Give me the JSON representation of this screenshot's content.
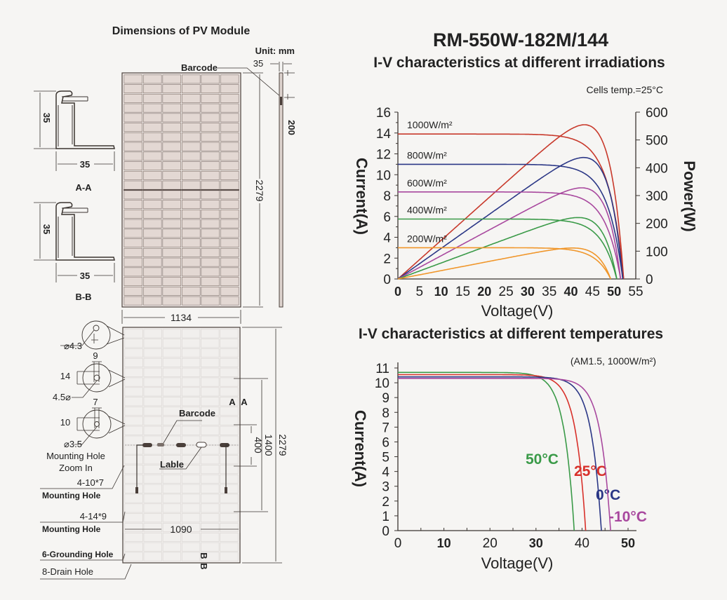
{
  "drawing": {
    "title": "Dimensions of PV Module",
    "unit": "Unit: mm",
    "barcode_top": "Barcode",
    "frame_depth": "35",
    "cable_length": "200",
    "length": "2279",
    "width": "1134",
    "section_aa": {
      "height": "35",
      "width": "35",
      "label": "A-A"
    },
    "section_bb": {
      "height": "35",
      "width": "35",
      "label": "B-B"
    },
    "hole_grounding_dia": "⌀4.3",
    "hole_large": {
      "w": "9",
      "h": "14",
      "dia": "4.5⌀"
    },
    "hole_small": {
      "w": "7",
      "h": "10",
      "dia": "⌀3.5"
    },
    "zoom_caption": [
      "Mounting Hole",
      "Zoom In"
    ],
    "mount_small_count": "4-10*7",
    "mount_small_label": "Mounting Hole",
    "mount_large_count": "4-14*9",
    "mount_large_label": "Mounting Hole",
    "grounding": "6-Grounding Hole",
    "drain": "8-Drain Hole",
    "barcode_back": "Barcode",
    "label_back": "Lable",
    "back_length": "2279",
    "mount_span": "1400",
    "mount_inner": "400",
    "mount_width": "1090",
    "section_mark_a": "A",
    "section_mark_b": "B"
  },
  "model": "RM-550W-182M/144",
  "chart_data": [
    {
      "type": "line",
      "title": "I-V characteristics at different irradiations",
      "note": "Cells temp.=25°C",
      "xlabel": "Voltage(V)",
      "ylabel": "Current(A)",
      "y2label": "Power(W)",
      "xlim": [
        0,
        55
      ],
      "ylim": [
        0,
        16
      ],
      "y2lim": [
        0,
        600
      ],
      "xticks": [
        "0",
        "5",
        "10",
        "15",
        "20",
        "25",
        "30",
        "35",
        "40",
        "45",
        "50",
        "55"
      ],
      "yticks": [
        "0",
        "2",
        "4",
        "6",
        "8",
        "10",
        "12",
        "14",
        "16"
      ],
      "y2ticks": [
        "0",
        "100",
        "200",
        "300",
        "400",
        "500",
        "600"
      ],
      "grid": false,
      "series": [
        {
          "name": "1000W/m²",
          "isc": 13.9,
          "voc": 52.2,
          "color": "#c8392b"
        },
        {
          "name": "800W/m²",
          "isc": 11.0,
          "voc": 52.0,
          "color": "#2b3786"
        },
        {
          "name": "600W/m²",
          "isc": 8.35,
          "voc": 51.5,
          "color": "#a8489e"
        },
        {
          "name": "400W/m²",
          "isc": 5.75,
          "voc": 50.6,
          "color": "#3a9a48"
        },
        {
          "name": "200W/m²",
          "isc": 3.0,
          "voc": 49.2,
          "color": "#f0962a"
        }
      ]
    },
    {
      "type": "line",
      "title": "I-V characteristics at different temperatures",
      "note": "(AM1.5, 1000W/m²)",
      "xlabel": "Voltage(V)",
      "ylabel": "Current(A)",
      "xlim": [
        0,
        52
      ],
      "ylim": [
        0,
        11
      ],
      "xticks": [
        "0",
        "10",
        "20",
        "30",
        "40",
        "50"
      ],
      "yticks": [
        "0",
        "1",
        "2",
        "3",
        "4",
        "5",
        "6",
        "7",
        "8",
        "9",
        "10",
        "11"
      ],
      "grid": false,
      "series": [
        {
          "name": "50°C",
          "isc": 10.7,
          "voc": 38.3,
          "color": "#3a9a48"
        },
        {
          "name": "25°C",
          "isc": 10.55,
          "voc": 40.8,
          "color": "#d8302a"
        },
        {
          "name": "0°C",
          "isc": 10.4,
          "voc": 44.2,
          "color": "#2b3786"
        },
        {
          "name": "-10°C",
          "isc": 10.3,
          "voc": 46.2,
          "color": "#a8489e"
        }
      ]
    }
  ]
}
